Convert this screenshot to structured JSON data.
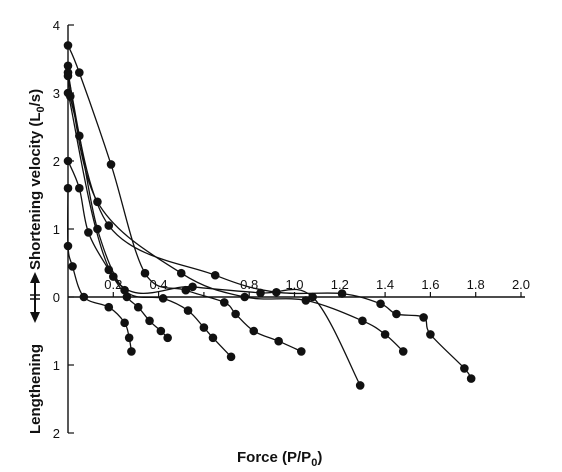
{
  "chart_data": {
    "type": "scatter",
    "xlabel": "Force (P/P",
    "xlabel_sub": "0",
    "xlabel_end": ")",
    "ylabel_top": "Shortening velocity (L",
    "ylabel_top_sub": "0",
    "ylabel_top_end": "/s)",
    "ylabel_bottom": "Lengthening",
    "xlim": [
      0,
      2.0
    ],
    "ylim": [
      -2,
      4
    ],
    "x_ticks": [
      "0.2",
      "0.4",
      "0.8",
      "1.0",
      "1.2",
      "1.4",
      "1.6",
      "1.8",
      "2.0"
    ],
    "x_tick_values": [
      0.2,
      0.4,
      0.8,
      1.0,
      1.2,
      1.4,
      1.6,
      1.8,
      2.0
    ],
    "y_ticks_upper": [
      "4",
      "3",
      "2",
      "1",
      "0"
    ],
    "y_ticks_upper_values": [
      4,
      3,
      2,
      1,
      0
    ],
    "y_ticks_lower": [
      "1",
      "2"
    ],
    "y_ticks_lower_values": [
      -1,
      -2
    ],
    "grid": false,
    "series": [
      {
        "x": [
          0.0,
          0.0,
          0.02,
          0.07,
          0.18,
          0.25,
          0.27,
          0.28
        ],
        "y": [
          1.6,
          0.75,
          0.45,
          0.0,
          -0.15,
          -0.38,
          -0.6,
          -0.8
        ]
      },
      {
        "x": [
          0.0,
          0.05,
          0.09,
          0.18,
          0.26,
          0.31,
          0.36,
          0.41,
          0.44
        ],
        "y": [
          2.0,
          1.6,
          0.95,
          0.4,
          0.0,
          -0.15,
          -0.35,
          -0.5,
          -0.6
        ]
      },
      {
        "x": [
          0.0,
          0.01,
          0.05,
          0.13,
          0.25,
          0.42,
          0.53,
          0.6,
          0.64,
          0.72
        ],
        "y": [
          3.4,
          2.95,
          2.37,
          1.0,
          0.1,
          -0.02,
          -0.2,
          -0.45,
          -0.6,
          -0.88
        ]
      },
      {
        "x": [
          0.0,
          0.05,
          0.19,
          0.34,
          0.52,
          0.69,
          0.74,
          0.82,
          0.93,
          1.03
        ],
        "y": [
          3.7,
          3.3,
          1.95,
          0.35,
          0.1,
          -0.08,
          -0.25,
          -0.5,
          -0.65,
          -0.8
        ]
      },
      {
        "x": [
          0.0,
          0.13,
          0.5,
          0.78,
          1.05,
          1.3,
          1.4,
          1.48
        ],
        "y": [
          3.3,
          1.4,
          0.35,
          0.0,
          -0.05,
          -0.35,
          -0.55,
          -0.8
        ]
      },
      {
        "x": [
          0.0,
          0.18,
          0.65,
          0.92,
          1.21,
          1.38,
          1.45,
          1.57,
          1.6,
          1.75,
          1.78
        ],
        "y": [
          3.25,
          1.05,
          0.32,
          0.07,
          0.05,
          -0.1,
          -0.25,
          -0.3,
          -0.55,
          -1.05,
          -1.2
        ]
      },
      {
        "x": [
          0.0,
          0.2,
          0.55,
          0.85,
          1.08,
          1.29
        ],
        "y": [
          3.0,
          0.3,
          0.15,
          0.06,
          0.0,
          -1.3
        ]
      }
    ]
  }
}
